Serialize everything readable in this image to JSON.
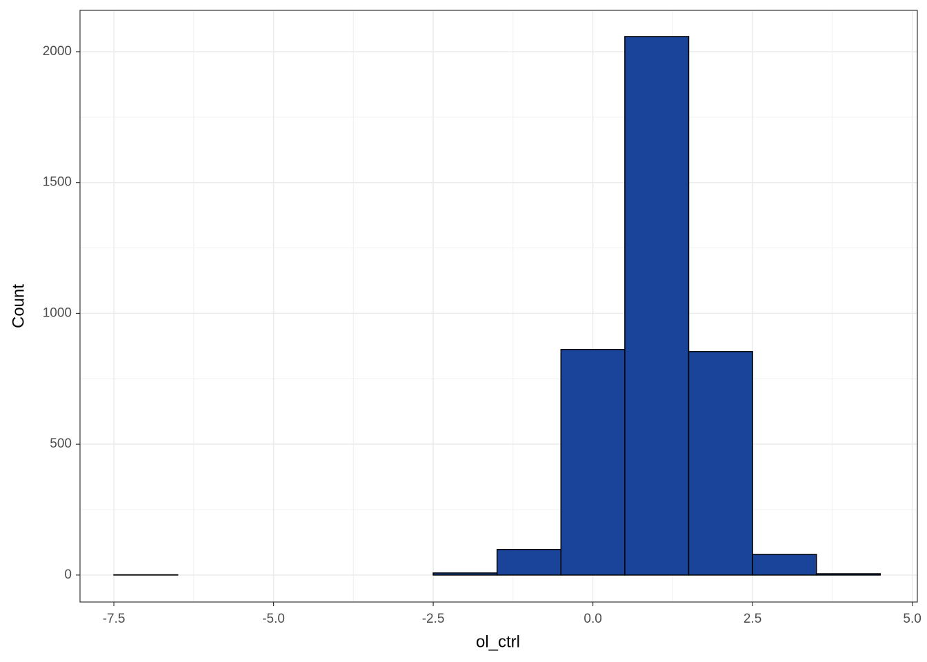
{
  "chart_data": {
    "type": "histogram",
    "x_label": "ol_ctrl",
    "y_label": "Count",
    "bins": [
      -7.5,
      -6.5,
      -5.5,
      -4.5,
      -3.5,
      -2.5,
      -1.5,
      -0.5,
      0.5,
      1.5,
      2.5,
      3.5,
      4.5
    ],
    "values": [
      1,
      0,
      0,
      0,
      0,
      8,
      98,
      862,
      2058,
      854,
      79,
      5,
      3
    ],
    "color": "#1a4499",
    "edge_color": "#000000",
    "xlim": [
      -8.03,
      5.08
    ],
    "xticks": [
      {
        "value": -7.5,
        "label": "-7.5"
      },
      {
        "value": -5,
        "label": "-5.0"
      },
      {
        "value": -2.5,
        "label": "-2.5"
      },
      {
        "value": 0,
        "label": "0.0"
      },
      2.5,
      {
        "value": 5,
        "label": "5.0"
      }
    ],
    "ylim": [
      -103,
      2158
    ],
    "yticks": [
      0,
      500,
      1000,
      1500,
      2000
    ],
    "grid": true
  }
}
